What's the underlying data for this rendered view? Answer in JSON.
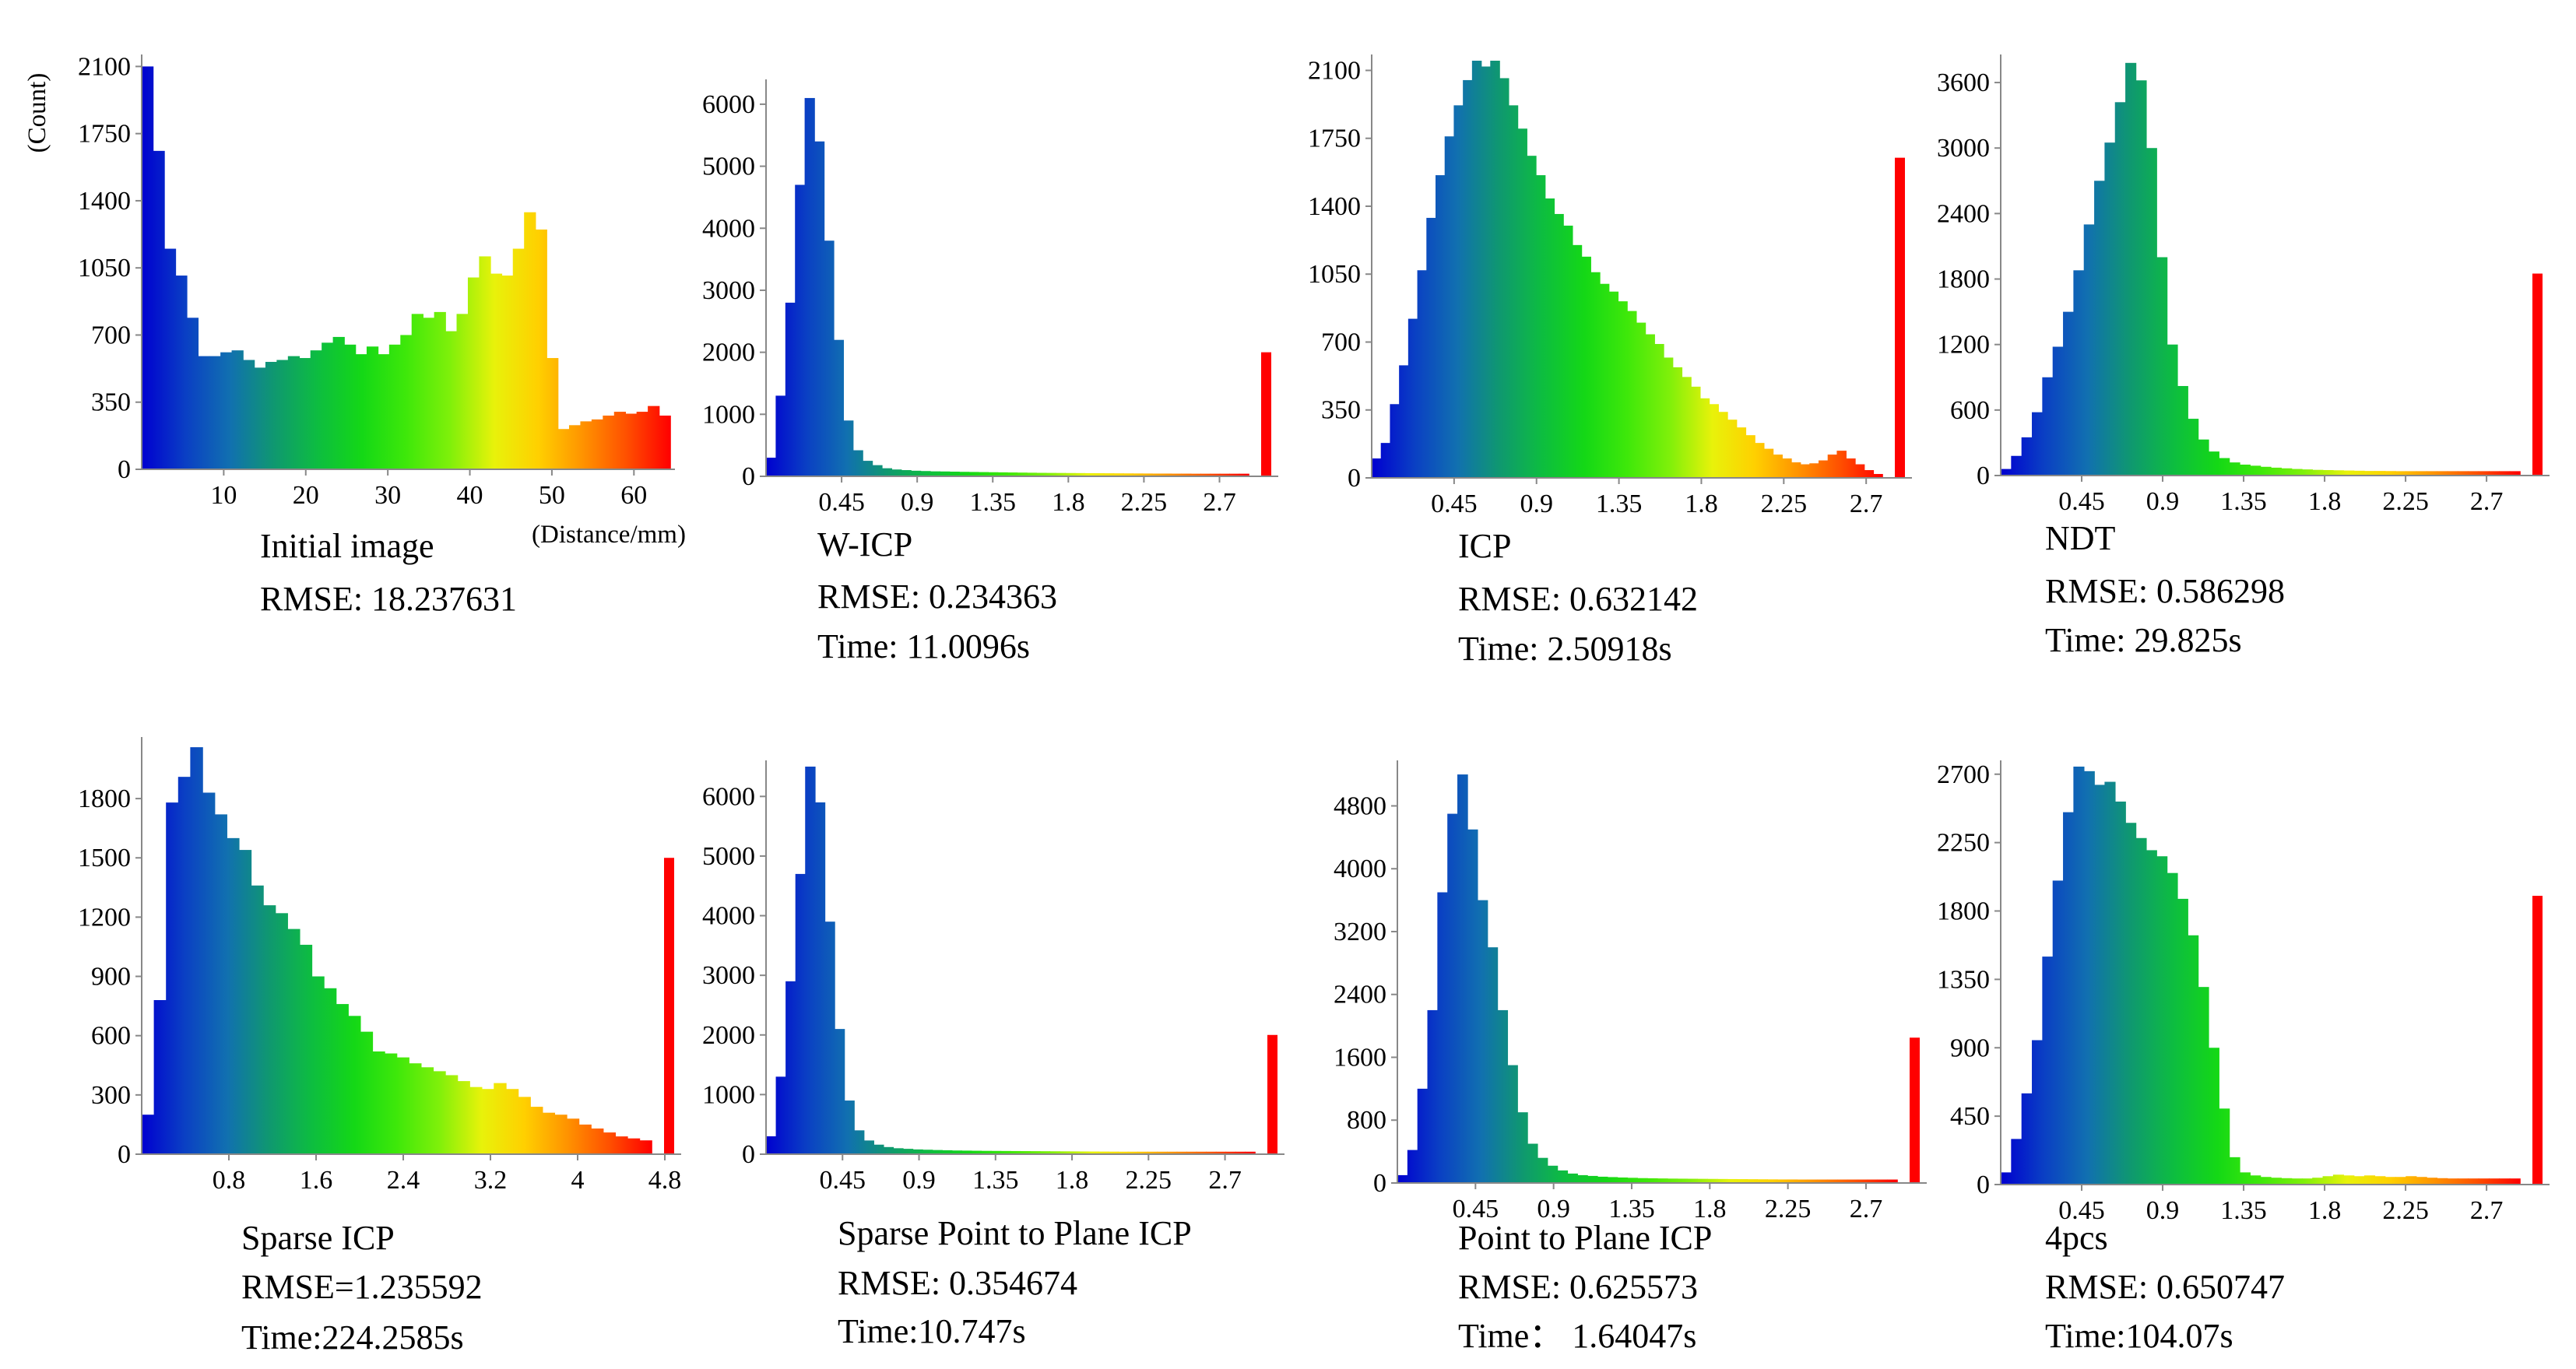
{
  "colors": {
    "gradient": [
      "#0000d0",
      "#0a3fc4",
      "#1170b0",
      "#0f9870",
      "#0dbd40",
      "#14d816",
      "#3ee80a",
      "#7ff00a",
      "#e8f20a",
      "#ffd000",
      "#ff9400",
      "#ff5000",
      "#ff0000"
    ],
    "outlier": "#ff0000",
    "axis": "#888888"
  },
  "chart_data": [
    {
      "type": "bar",
      "title": "Initial image",
      "rmse": "RMSE: 18.237631",
      "time": "",
      "ylabel": "(Count)",
      "xlabel": "(Distance/mm)",
      "xlim": [
        0,
        65
      ],
      "ylim": [
        0,
        2130
      ],
      "yticks": [
        0,
        350,
        700,
        1050,
        1400,
        1750,
        2100
      ],
      "xticks": [
        10,
        20,
        30,
        40,
        50,
        60
      ],
      "values": [
        2100,
        1660,
        1150,
        1010,
        790,
        590,
        590,
        610,
        620,
        570,
        530,
        560,
        570,
        590,
        580,
        620,
        660,
        690,
        650,
        600,
        640,
        600,
        650,
        700,
        810,
        790,
        820,
        720,
        810,
        1000,
        1110,
        1020,
        1010,
        1150,
        1340,
        1250,
        580,
        210,
        230,
        250,
        260,
        280,
        300,
        290,
        300,
        330,
        280
      ],
      "outlier": 0
    },
    {
      "type": "bar",
      "title": "W-ICP",
      "rmse": "RMSE: 0.234363",
      "time": "Time: 11.0096s",
      "xlim": [
        0,
        3.05
      ],
      "ylim": [
        0,
        6300
      ],
      "yticks": [
        0,
        1000,
        2000,
        3000,
        4000,
        5000,
        6000
      ],
      "xticks": [
        0.45,
        0.9,
        1.35,
        1.8,
        2.25,
        2.7
      ],
      "values": [
        300,
        1300,
        2800,
        4700,
        6100,
        5400,
        3800,
        2200,
        900,
        420,
        250,
        180,
        130,
        110,
        100,
        90,
        85,
        80,
        78,
        75,
        72,
        70,
        68,
        66,
        64,
        62,
        60,
        58,
        56,
        55,
        54,
        53,
        52,
        51,
        50,
        49,
        48,
        47,
        46,
        45,
        44,
        44,
        43,
        43,
        42,
        42,
        42,
        42,
        42,
        42
      ],
      "outlier": 2000
    },
    {
      "type": "bar",
      "title": "ICP",
      "rmse": "RMSE: 0.632142",
      "time": "Time: 2.50918s",
      "xlim": [
        0,
        2.95
      ],
      "ylim": [
        0,
        2150
      ],
      "yticks": [
        0,
        350,
        700,
        1050,
        1400,
        1750,
        2100
      ],
      "xticks": [
        0.45,
        0.9,
        1.35,
        1.8,
        2.25,
        2.7
      ],
      "values": [
        100,
        180,
        380,
        580,
        820,
        1070,
        1340,
        1560,
        1760,
        1920,
        2050,
        2150,
        2120,
        2150,
        2060,
        1920,
        1800,
        1660,
        1560,
        1440,
        1360,
        1300,
        1200,
        1140,
        1060,
        1000,
        960,
        910,
        860,
        800,
        740,
        690,
        620,
        570,
        520,
        470,
        410,
        380,
        340,
        300,
        260,
        220,
        180,
        150,
        120,
        100,
        80,
        70,
        75,
        90,
        120,
        140,
        100,
        70,
        40,
        20
      ],
      "outlier": 1650
    },
    {
      "type": "bar",
      "title": "NDT",
      "rmse": "RMSE: 0.586298",
      "time": "Time: 29.825s",
      "xlim": [
        0,
        3.05
      ],
      "ylim": [
        0,
        3800
      ],
      "yticks": [
        0,
        600,
        1200,
        1800,
        2400,
        3000,
        3600
      ],
      "xticks": [
        0.45,
        0.9,
        1.35,
        1.8,
        2.25,
        2.7
      ],
      "values": [
        60,
        180,
        350,
        580,
        900,
        1180,
        1500,
        1880,
        2300,
        2700,
        3050,
        3420,
        3780,
        3620,
        3000,
        2000,
        1200,
        820,
        520,
        330,
        220,
        160,
        120,
        100,
        90,
        80,
        72,
        66,
        60,
        56,
        52,
        50,
        48,
        46,
        44,
        42,
        42,
        41,
        40,
        40,
        40,
        40,
        40,
        40,
        40,
        40,
        40,
        40,
        40,
        40
      ],
      "outlier": 1850
    },
    {
      "type": "bar",
      "title": "Sparse ICP",
      "rmse": "RMSE=1.235592",
      "time": "Time:224.2585s",
      "xlim": [
        0,
        4.95
      ],
      "ylim": [
        0,
        2080
      ],
      "yticks": [
        0,
        300,
        600,
        900,
        1200,
        1500,
        1800
      ],
      "xticks": [
        0.8,
        1.6,
        2.4,
        3.2,
        4,
        4.8
      ],
      "values": [
        200,
        780,
        1780,
        1910,
        2060,
        1830,
        1720,
        1600,
        1540,
        1360,
        1260,
        1220,
        1140,
        1060,
        900,
        840,
        760,
        700,
        620,
        520,
        510,
        490,
        460,
        440,
        420,
        400,
        370,
        340,
        330,
        360,
        330,
        290,
        240,
        210,
        200,
        180,
        150,
        130,
        110,
        90,
        80,
        70
      ],
      "outlier": 1500
    },
    {
      "type": "bar",
      "title": "Sparse Point to Plane ICP",
      "rmse": "RMSE: 0.354674",
      "time": "Time:10.747s",
      "xlim": [
        0,
        3.05
      ],
      "ylim": [
        0,
        6500
      ],
      "yticks": [
        0,
        1000,
        2000,
        3000,
        4000,
        5000,
        6000
      ],
      "xticks": [
        0.45,
        0.9,
        1.35,
        1.8,
        2.25,
        2.7
      ],
      "values": [
        300,
        1300,
        2900,
        4700,
        6500,
        5900,
        3900,
        2100,
        900,
        400,
        230,
        160,
        120,
        100,
        90,
        80,
        75,
        70,
        66,
        62,
        60,
        58,
        56,
        55,
        54,
        53,
        52,
        51,
        50,
        49,
        48,
        47,
        46,
        45,
        44,
        43,
        42,
        42,
        42,
        42,
        42,
        42,
        42,
        42,
        42,
        42,
        42,
        42,
        42,
        42
      ],
      "outlier": 2000
    },
    {
      "type": "bar",
      "title": "Point to Plane ICP",
      "rmse": "RMSE: 0.625573",
      "time": "Time：  1.64047s",
      "xlim": [
        0,
        3.05
      ],
      "ylim": [
        0,
        5300
      ],
      "yticks": [
        0,
        800,
        1600,
        2400,
        3200,
        4000,
        4800
      ],
      "xticks": [
        0.45,
        0.9,
        1.35,
        1.8,
        2.25,
        2.7
      ],
      "values": [
        100,
        420,
        1200,
        2200,
        3700,
        4700,
        5200,
        4500,
        3600,
        3000,
        2200,
        1500,
        900,
        500,
        320,
        220,
        160,
        120,
        100,
        90,
        80,
        75,
        70,
        66,
        62,
        60,
        58,
        56,
        55,
        54,
        53,
        52,
        51,
        50,
        49,
        48,
        47,
        46,
        45,
        45,
        44,
        44,
        44,
        44,
        44,
        44,
        44,
        44,
        44,
        44
      ],
      "outlier": 1850
    },
    {
      "type": "bar",
      "title": "4pcs",
      "rmse": "RMSE: 0.650747",
      "time": "Time:104.07s",
      "xlim": [
        0,
        3.05
      ],
      "ylim": [
        0,
        2750
      ],
      "yticks": [
        0,
        450,
        900,
        1350,
        1800,
        2250,
        2700
      ],
      "xticks": [
        0.45,
        0.9,
        1.35,
        1.8,
        2.25,
        2.7
      ],
      "values": [
        80,
        300,
        600,
        950,
        1500,
        2000,
        2450,
        2750,
        2720,
        2630,
        2650,
        2520,
        2380,
        2280,
        2200,
        2160,
        2050,
        1880,
        1640,
        1300,
        900,
        500,
        180,
        80,
        60,
        50,
        45,
        42,
        40,
        40,
        45,
        55,
        65,
        60,
        55,
        60,
        55,
        50,
        50,
        55,
        50,
        45,
        42,
        40,
        40,
        40,
        40,
        40,
        40,
        40
      ],
      "outlier": 1900
    }
  ]
}
